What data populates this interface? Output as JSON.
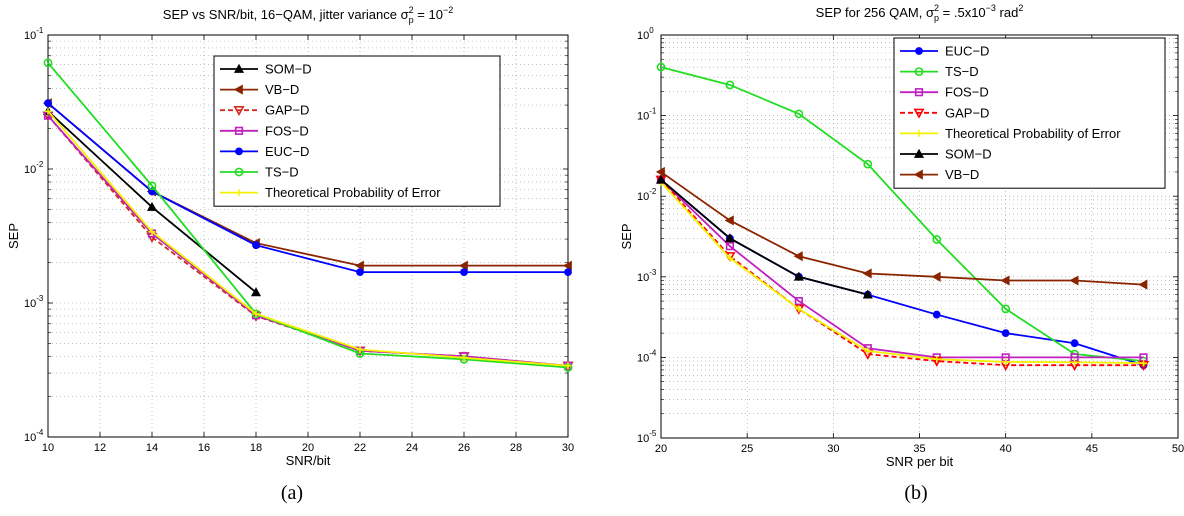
{
  "chart_data": [
    {
      "type": "line",
      "title": "SEP vs SNR/bit, 16−QAM, jitter variance σp² = 10⁻²",
      "title_parts": [
        "SEP vs SNR/bit, 16−QAM, jitter variance σ",
        "2",
        "p",
        " = 10",
        "−2"
      ],
      "xlabel": "SNR/bit",
      "ylabel": "SEP",
      "yscale": "log",
      "xlim": [
        10,
        30
      ],
      "ylim": [
        0.0001,
        0.1
      ],
      "xticks": [
        10,
        12,
        14,
        16,
        18,
        20,
        22,
        24,
        26,
        28,
        30
      ],
      "ytick_exponents": [
        -4,
        -3,
        -2,
        -1
      ],
      "grid": "dotted",
      "legend_position": "top-right",
      "caption": "(a)",
      "series": [
        {
          "name": "SOM−D",
          "color": "#000000",
          "marker": "triangle-up",
          "dashed": false,
          "x": [
            10,
            14,
            18
          ],
          "y": [
            0.027,
            0.0052,
            0.0012
          ]
        },
        {
          "name": "VB−D",
          "color": "#8b2500",
          "marker": "triangle-left",
          "dashed": false,
          "x": [
            10,
            14,
            18,
            22,
            26,
            30
          ],
          "y": [
            0.031,
            0.0068,
            0.0028,
            0.0019,
            0.0019,
            0.0019
          ]
        },
        {
          "name": "GAP−D",
          "color": "#d42a1e",
          "marker": "triangle-down",
          "dashed": true,
          "x": [
            10,
            14,
            18,
            22,
            26,
            30
          ],
          "y": [
            0.025,
            0.0031,
            0.0008,
            0.00044,
            0.0004,
            0.00034
          ]
        },
        {
          "name": "FOS−D",
          "color": "#c020c0",
          "marker": "square",
          "dashed": false,
          "x": [
            10,
            14,
            18,
            22,
            26,
            30
          ],
          "y": [
            0.025,
            0.0033,
            0.00081,
            0.00044,
            0.0004,
            0.00034
          ]
        },
        {
          "name": "EUC−D",
          "color": "#0000ff",
          "marker": "circle-filled",
          "dashed": false,
          "x": [
            10,
            14,
            18,
            22,
            26,
            30
          ],
          "y": [
            0.031,
            0.0068,
            0.0027,
            0.0017,
            0.0017,
            0.0017
          ]
        },
        {
          "name": "TS−D",
          "color": "#22dd22",
          "marker": "circle",
          "dashed": false,
          "x": [
            10,
            14,
            18,
            22,
            26,
            30
          ],
          "y": [
            0.062,
            0.0075,
            0.00083,
            0.00042,
            0.00038,
            0.00033
          ]
        },
        {
          "name": "Theoretical Probability of Error",
          "color": "#f2f200",
          "marker": "plus",
          "dashed": false,
          "x": [
            10,
            14,
            18,
            22,
            26,
            30
          ],
          "y": [
            0.027,
            0.0034,
            0.00083,
            0.00045,
            0.00039,
            0.00034
          ]
        }
      ]
    },
    {
      "type": "line",
      "title": "SEP for 256 QAM, σp² = .5x10⁻³ rad²",
      "title_parts": [
        "SEP for 256 QAM, σ",
        "2",
        "p",
        " = .5x10",
        "−3",
        " rad",
        "2"
      ],
      "xlabel": "SNR per bit",
      "ylabel": "SEP",
      "yscale": "log",
      "xlim": [
        20,
        50
      ],
      "ylim": [
        1e-05,
        1
      ],
      "xticks": [
        20,
        25,
        30,
        35,
        40,
        45,
        50
      ],
      "ytick_exponents": [
        -5,
        -4,
        -3,
        -2,
        -1,
        0
      ],
      "grid": "dotted",
      "legend_position": "top-right",
      "caption": "(b)",
      "series": [
        {
          "name": "EUC−D",
          "color": "#0000ff",
          "marker": "circle-filled",
          "dashed": false,
          "x": [
            20,
            24,
            28,
            32,
            36,
            40,
            44,
            48
          ],
          "y": [
            0.016,
            0.003,
            0.001,
            0.0006,
            0.00034,
            0.0002,
            0.00015,
            8e-05
          ]
        },
        {
          "name": "TS−D",
          "color": "#22dd22",
          "marker": "circle",
          "dashed": false,
          "x": [
            20,
            24,
            28,
            32,
            36,
            40,
            44,
            48
          ],
          "y": [
            0.4,
            0.24,
            0.105,
            0.025,
            0.0029,
            0.0004,
            0.00011,
            9e-05
          ]
        },
        {
          "name": "FOS−D",
          "color": "#c020c0",
          "marker": "square",
          "dashed": false,
          "x": [
            20,
            24,
            28,
            32,
            36,
            40,
            44,
            48
          ],
          "y": [
            0.016,
            0.0024,
            0.0005,
            0.00013,
            0.0001,
            0.0001,
            0.0001,
            0.0001
          ]
        },
        {
          "name": "GAP−D",
          "color": "#ff0000",
          "marker": "triangle-down",
          "dashed": true,
          "x": [
            20,
            24,
            28,
            32,
            36,
            40,
            44,
            48
          ],
          "y": [
            0.016,
            0.0018,
            0.0004,
            0.00011,
            9e-05,
            8e-05,
            8e-05,
            8e-05
          ]
        },
        {
          "name": "Theoretical Probability of Error",
          "color": "#f2f200",
          "marker": "plus",
          "dashed": false,
          "x": [
            20,
            24,
            28,
            32,
            36,
            40,
            44,
            48
          ],
          "y": [
            0.015,
            0.0017,
            0.0004,
            0.00012,
            9.5e-05,
            8.8e-05,
            8.7e-05,
            8.5e-05
          ]
        },
        {
          "name": "SOM−D",
          "color": "#000000",
          "marker": "triangle-up",
          "dashed": false,
          "x": [
            20,
            24,
            28,
            32
          ],
          "y": [
            0.016,
            0.003,
            0.001,
            0.0006
          ]
        },
        {
          "name": "VB−D",
          "color": "#8b2500",
          "marker": "triangle-left",
          "dashed": false,
          "x": [
            20,
            24,
            28,
            32,
            36,
            40,
            44,
            48
          ],
          "y": [
            0.02,
            0.005,
            0.0018,
            0.0011,
            0.001,
            0.0009,
            0.0009,
            0.0008
          ]
        }
      ]
    }
  ]
}
